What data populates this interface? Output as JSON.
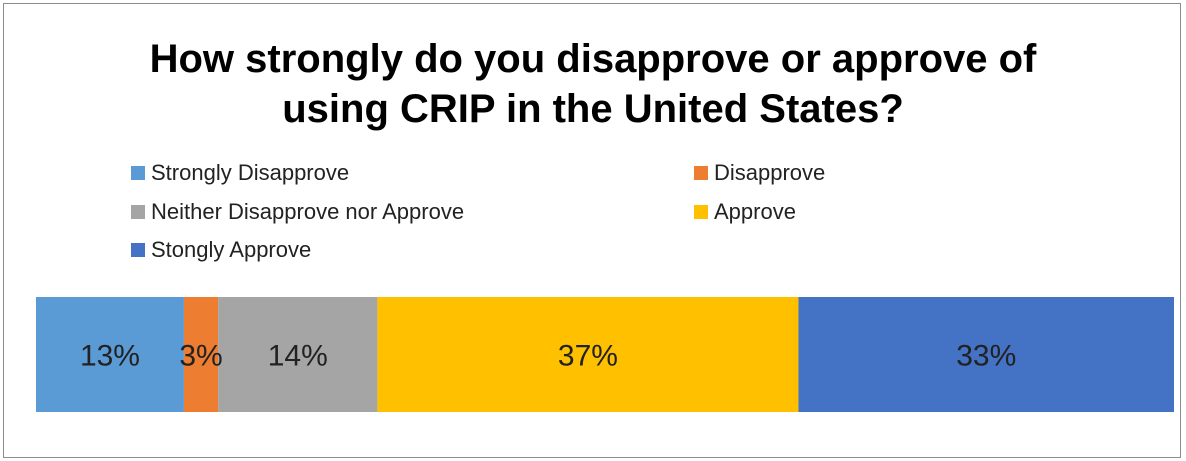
{
  "chart_data": {
    "type": "bar",
    "orientation": "horizontal-stacked",
    "title_lines": [
      "How strongly do you disapprove or approve of",
      "using CRIP in the United States?"
    ],
    "xlabel": "",
    "ylabel": "",
    "categories": [
      ""
    ],
    "xlim": [
      0,
      100
    ],
    "grid": false,
    "legend_placement": "top",
    "series": [
      {
        "name": "Strongly Disapprove",
        "values": [
          13
        ],
        "label": "13%",
        "color": "#5B9BD5"
      },
      {
        "name": "Disapprove",
        "values": [
          3
        ],
        "label": "3%",
        "color": "#ED7D31"
      },
      {
        "name": "Neither Disapprove nor Approve",
        "values": [
          14
        ],
        "label": "14%",
        "color": "#A5A5A5"
      },
      {
        "name": "Approve",
        "values": [
          37
        ],
        "label": "37%",
        "color": "#FFC000"
      },
      {
        "name": "Stongly Approve",
        "values": [
          33
        ],
        "label": "33%",
        "color": "#4472C4"
      }
    ]
  }
}
